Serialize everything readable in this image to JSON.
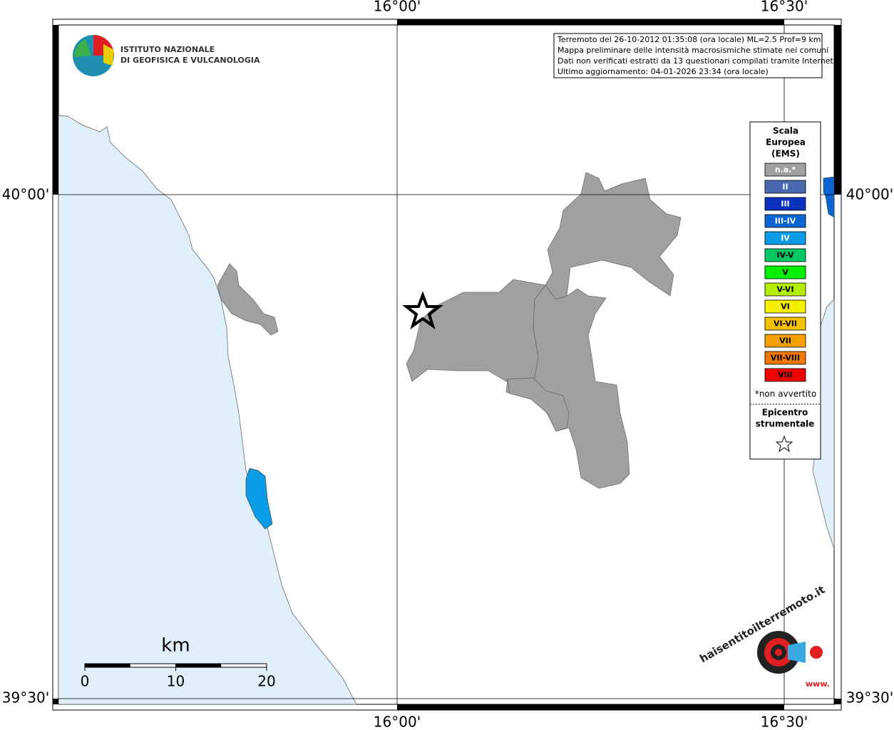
{
  "map": {
    "lon_labels": [
      "16°00'",
      "16°30'"
    ],
    "lat_labels": [
      "40°00'",
      "39°30'"
    ],
    "logo": {
      "line1": "ISTITUTO NAZIONALE",
      "line2": "DI GEOFISICA E VULCANOLOGIA"
    },
    "info": [
      "Terremoto del 26-10-2012 01:35:08 (ora locale) ML=2.5 Prof=9 km",
      "Mappa preliminare delle intensità macrosismiche stimate nei comuni",
      "Dati non verificati estratti da 13 questionari compilati tramite Internet.",
      "Ultimo aggiornamento: 04-01-2026 23:34 (ora locale)"
    ],
    "legend": {
      "title": [
        "Scala",
        "Europea",
        "(EMS)"
      ],
      "items": [
        {
          "label": "n.a.*",
          "color": "#a0a0a0"
        },
        {
          "label": "II",
          "color": "#4a68b0"
        },
        {
          "label": "III",
          "color": "#0a32be"
        },
        {
          "label": "III-IV",
          "color": "#0a64d2"
        },
        {
          "label": "IV",
          "color": "#0a9be6"
        },
        {
          "label": "IV-V",
          "color": "#00c864"
        },
        {
          "label": "V",
          "color": "#00ee00"
        },
        {
          "label": "V-VI",
          "color": "#b4ee00"
        },
        {
          "label": "VI",
          "color": "#f5f000"
        },
        {
          "label": "VI-VII",
          "color": "#f5c000"
        },
        {
          "label": "VII",
          "color": "#f5a000"
        },
        {
          "label": "VII-VIII",
          "color": "#f07800"
        },
        {
          "label": "VIII",
          "color": "#f00000"
        }
      ],
      "note": "*non avvertito",
      "epicenter": [
        "Epicentro",
        "strumentale"
      ]
    },
    "scale": {
      "unit": "km",
      "ticks": [
        0,
        10,
        20
      ]
    },
    "site": {
      "name": "haisentitoilterremoto.it",
      "www": "www."
    }
  }
}
